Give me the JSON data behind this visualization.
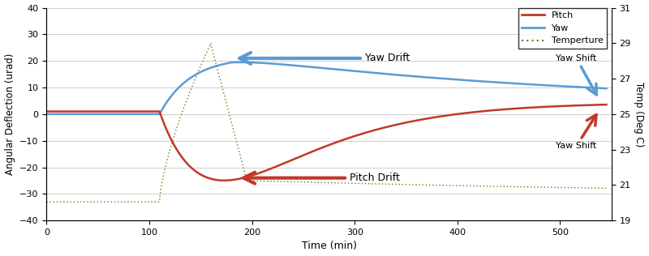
{
  "title": "",
  "xlabel": "Time (min)",
  "ylabel_left": "Angular Deflection (urad)",
  "ylabel_right": "Temp (Deg C)",
  "ylim_left": [
    -40,
    40
  ],
  "ylim_right": [
    19,
    31
  ],
  "xlim": [
    0,
    550
  ],
  "yticks_left": [
    -40,
    -30,
    -20,
    -10,
    0,
    10,
    20,
    30,
    40
  ],
  "yticks_right": [
    19,
    21,
    23,
    25,
    27,
    29,
    31
  ],
  "xticks": [
    0,
    100,
    200,
    300,
    400,
    500
  ],
  "pitch_color": "#c0392b",
  "yaw_color": "#5b9bd5",
  "temp_color": "#6d7a00",
  "legend_labels": [
    "Pitch",
    "Yaw",
    "Temperture"
  ],
  "annotation_yaw_drift": "Yaw Drift",
  "annotation_pitch_drift": "Pitch Drift",
  "annotation_yaw_shift1": "Yaw Shift",
  "annotation_yaw_shift2": "Yaw Shift",
  "bg_color": "#ffffff",
  "grid_color": "#c8c8c8"
}
